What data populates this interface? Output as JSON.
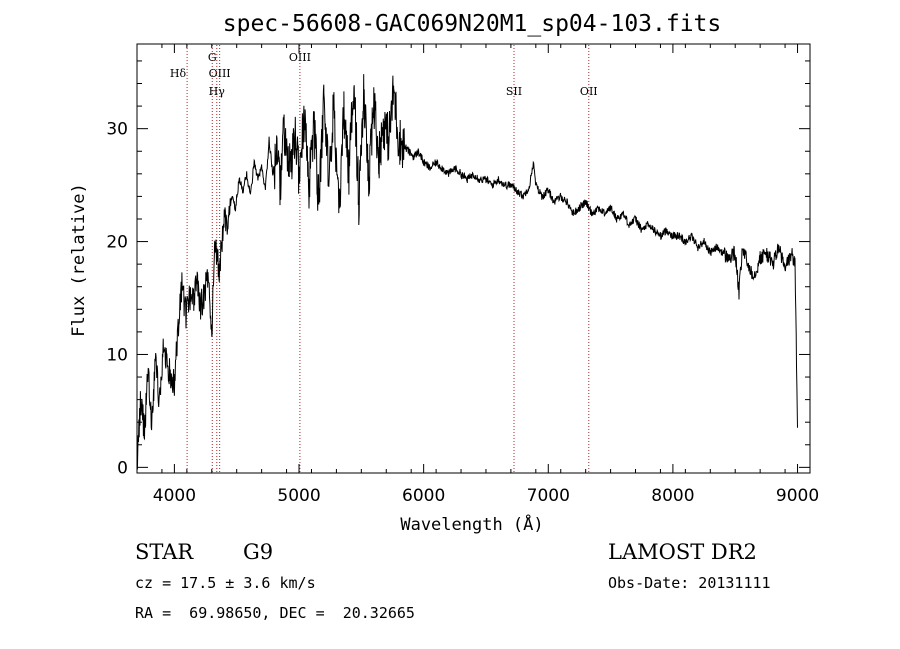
{
  "chart_data": {
    "type": "line",
    "title": "spec-56608-GAC069N20M1_sp04-103.fits",
    "xlabel": "Wavelength (Å)",
    "ylabel": "Flux (relative)",
    "xlim": [
      3700,
      9100
    ],
    "ylim": [
      -0.5,
      37.5
    ],
    "x_ticks": [
      4000,
      5000,
      6000,
      7000,
      8000,
      9000
    ],
    "y_ticks": [
      0,
      10,
      20,
      30
    ],
    "series": [
      {
        "x": [
          3700,
          3730,
          3760,
          3790,
          3820,
          3850,
          3880,
          3910,
          3940,
          3970,
          4000,
          4030,
          4060,
          4090,
          4120,
          4150,
          4180,
          4210,
          4240,
          4270,
          4300,
          4320,
          4340,
          4360,
          4380,
          4400,
          4430,
          4460,
          4490,
          4520,
          4550,
          4580,
          4610,
          4640,
          4670,
          4700,
          4730,
          4760,
          4790,
          4820,
          4850,
          4880,
          4910,
          4940,
          4970,
          5000,
          5040,
          5080,
          5120,
          5160,
          5200,
          5240,
          5280,
          5320,
          5360,
          5400,
          5440,
          5480,
          5520,
          5560,
          5600,
          5640,
          5680,
          5720,
          5760,
          5800,
          5840,
          5880,
          5920,
          5960,
          6000,
          6050,
          6100,
          6150,
          6200,
          6250,
          6300,
          6350,
          6400,
          6450,
          6500,
          6550,
          6600,
          6650,
          6700,
          6750,
          6800,
          6850,
          6880,
          6900,
          6950,
          7000,
          7050,
          7100,
          7150,
          7200,
          7250,
          7300,
          7350,
          7400,
          7450,
          7500,
          7550,
          7600,
          7650,
          7700,
          7750,
          7800,
          7850,
          7900,
          7950,
          8000,
          8050,
          8100,
          8150,
          8200,
          8250,
          8300,
          8350,
          8400,
          8450,
          8500,
          8530,
          8560,
          8600,
          8650,
          8700,
          8750,
          8800,
          8850,
          8900,
          8950,
          8980,
          9000
        ],
        "y": [
          0.5,
          6.0,
          3.0,
          8.5,
          4.0,
          9.5,
          6.0,
          10.5,
          9.0,
          8.0,
          7.5,
          12.5,
          16.0,
          13.5,
          15.0,
          14.5,
          16.5,
          14.0,
          15.5,
          17.0,
          12.0,
          18.5,
          19.0,
          17.5,
          20.0,
          22.0,
          21.5,
          24.0,
          23.0,
          25.5,
          24.5,
          26.0,
          24.0,
          27.0,
          25.5,
          26.5,
          24.5,
          29.0,
          26.0,
          27.5,
          25.0,
          30.0,
          27.0,
          26.5,
          29.5,
          26.0,
          31.0,
          25.0,
          30.5,
          23.0,
          33.0,
          25.5,
          32.0,
          22.0,
          31.5,
          26.0,
          34.5,
          23.5,
          33.0,
          25.0,
          32.5,
          27.5,
          30.5,
          29.0,
          33.5,
          29.0,
          28.5,
          28.0,
          27.5,
          28.0,
          27.0,
          26.5,
          27.0,
          26.5,
          26.0,
          26.5,
          26.0,
          25.5,
          26.0,
          25.5,
          25.5,
          25.0,
          25.5,
          25.0,
          25.0,
          24.5,
          24.0,
          25.0,
          27.0,
          25.0,
          24.0,
          24.5,
          23.5,
          24.0,
          23.5,
          22.5,
          23.0,
          23.5,
          22.5,
          23.0,
          22.5,
          23.0,
          22.0,
          22.5,
          21.5,
          22.0,
          21.0,
          21.5,
          21.0,
          20.5,
          21.0,
          20.5,
          20.5,
          20.0,
          20.5,
          19.5,
          20.0,
          19.0,
          19.5,
          19.0,
          18.5,
          19.0,
          15.5,
          19.5,
          18.0,
          17.0,
          18.5,
          19.0,
          18.0,
          19.5,
          17.5,
          19.0,
          18.0,
          3.5
        ]
      }
    ],
    "line_markers": [
      {
        "label": "Hδ",
        "x": 4102,
        "tier": 2
      },
      {
        "label": "G",
        "x": 4304,
        "tier": 1
      },
      {
        "label": "OIII",
        "x": 4363,
        "tier": 2
      },
      {
        "label": "Hγ",
        "x": 4340,
        "tier": 3
      },
      {
        "label": "OIII",
        "x": 5007,
        "tier": 1
      },
      {
        "label": "SII",
        "x": 6725,
        "tier": 3
      },
      {
        "label": "OII",
        "x": 7325,
        "tier": 3
      }
    ],
    "marker_color": "#a52a2a"
  },
  "info": {
    "class_label": "STAR",
    "subclass": "G9",
    "survey": "LAMOST DR2",
    "cz": "cz = 17.5 ± 3.6 km/s",
    "obs_date": "Obs-Date: 20131111",
    "coords": "RA =  69.98650, DEC =  20.32665"
  }
}
